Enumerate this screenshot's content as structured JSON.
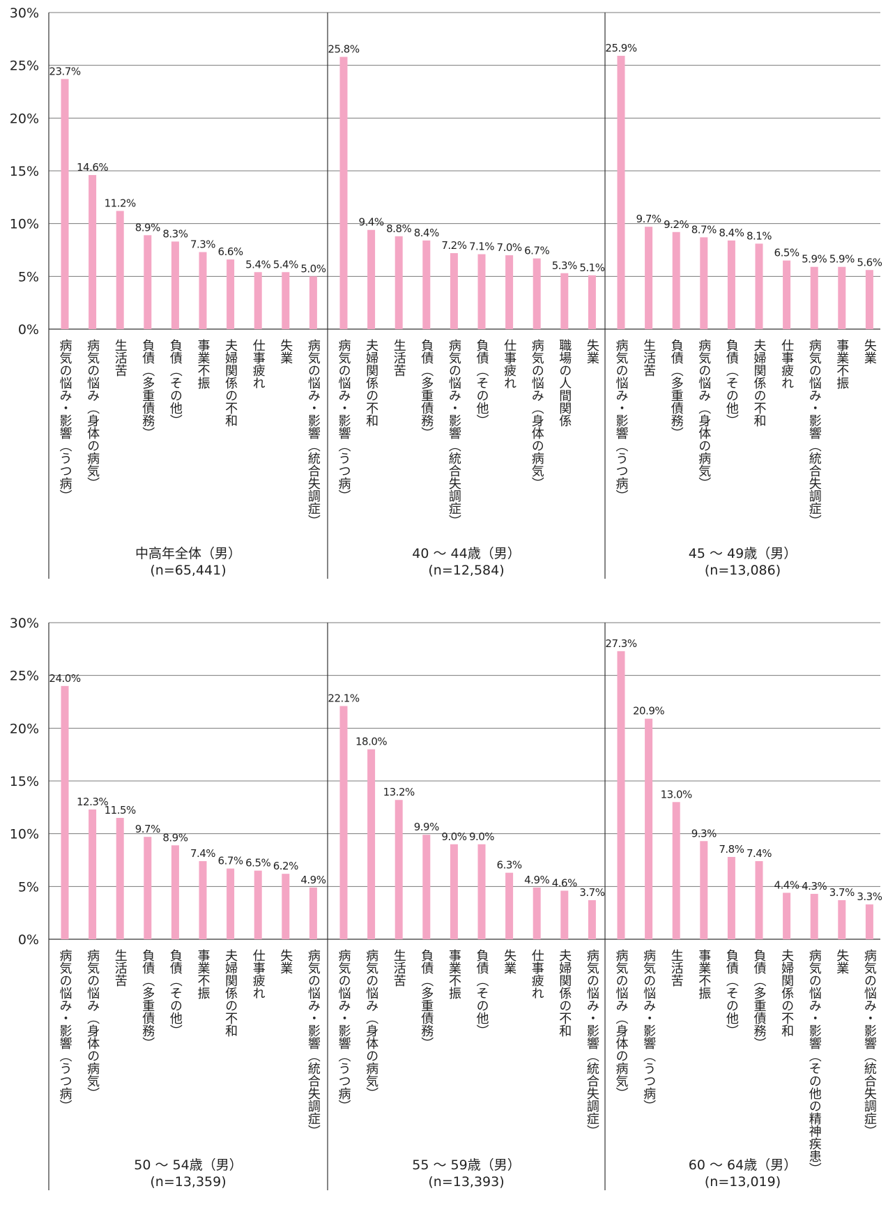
{
  "chart_data": {
    "type": "bar",
    "bar_color": "#f4a6c4",
    "y_unit": "%",
    "ylim": [
      0,
      30
    ],
    "yticks": [
      0,
      5,
      10,
      15,
      20,
      25,
      30
    ],
    "grid": true,
    "rows": [
      {
        "groups": [
          {
            "name": "中高年全体（男）",
            "n": "(n=65,441)",
            "categories": [
              "病気の悩み・影響（うつ病）",
              "病気の悩み（身体の病気）",
              "生活苦",
              "負債（多重債務）",
              "負債（その他）",
              "事業不振",
              "夫婦関係の不和",
              "仕事疲れ",
              "失業",
              "病気の悩み・影響（統合失調症）"
            ],
            "values": [
              23.7,
              14.6,
              11.2,
              8.9,
              8.3,
              7.3,
              6.6,
              5.4,
              5.4,
              5.0
            ]
          },
          {
            "name": "40 ～ 44歳（男）",
            "n": "(n=12,584)",
            "categories": [
              "病気の悩み・影響（うつ病）",
              "夫婦関係の不和",
              "生活苦",
              "負債（多重債務）",
              "病気の悩み・影響（統合失調症）",
              "負債（その他）",
              "仕事疲れ",
              "病気の悩み（身体の病気）",
              "職場の人間関係",
              "失業"
            ],
            "values": [
              25.8,
              9.4,
              8.8,
              8.4,
              7.2,
              7.1,
              7.0,
              6.7,
              5.3,
              5.1
            ]
          },
          {
            "name": "45 ～ 49歳（男）",
            "n": "(n=13,086)",
            "categories": [
              "病気の悩み・影響（うつ病）",
              "生活苦",
              "負債（多重債務）",
              "病気の悩み（身体の病気）",
              "負債（その他）",
              "夫婦関係の不和",
              "仕事疲れ",
              "病気の悩み・影響（統合失調症）",
              "事業不振",
              "失業"
            ],
            "values": [
              25.9,
              9.7,
              9.2,
              8.7,
              8.4,
              8.1,
              6.5,
              5.9,
              5.9,
              5.6
            ]
          }
        ]
      },
      {
        "groups": [
          {
            "name": "50 ～ 54歳（男）",
            "n": "(n=13,359)",
            "categories": [
              "病気の悩み・影響（うつ病）",
              "病気の悩み（身体の病気）",
              "生活苦",
              "負債（多重債務）",
              "負債（その他）",
              "事業不振",
              "夫婦関係の不和",
              "仕事疲れ",
              "失業",
              "病気の悩み・影響（統合失調症）"
            ],
            "values": [
              24.0,
              12.3,
              11.5,
              9.7,
              8.9,
              7.4,
              6.7,
              6.5,
              6.2,
              4.9
            ]
          },
          {
            "name": "55 ～ 59歳（男）",
            "n": "(n=13,393)",
            "categories": [
              "病気の悩み・影響（うつ病）",
              "病気の悩み（身体の病気）",
              "生活苦",
              "負債（多重債務）",
              "事業不振",
              "負債（その他）",
              "失業",
              "仕事疲れ",
              "夫婦関係の不和",
              "病気の悩み・影響（統合失調症）"
            ],
            "values": [
              22.1,
              18.0,
              13.2,
              9.9,
              9.0,
              9.0,
              6.3,
              4.9,
              4.6,
              3.7
            ]
          },
          {
            "name": "60 ～ 64歳（男）",
            "n": "(n=13,019)",
            "categories": [
              "病気の悩み（身体の病気）",
              "病気の悩み・影響（うつ病）",
              "生活苦",
              "事業不振",
              "負債（その他）",
              "負債（多重債務）",
              "夫婦関係の不和",
              "病気の悩み・影響（その他の精神疾患）",
              "失業",
              "病気の悩み・影響（統合失調症）"
            ],
            "values": [
              27.3,
              20.9,
              13.0,
              9.3,
              7.8,
              7.4,
              4.4,
              4.3,
              3.7,
              3.3
            ]
          }
        ]
      }
    ]
  }
}
